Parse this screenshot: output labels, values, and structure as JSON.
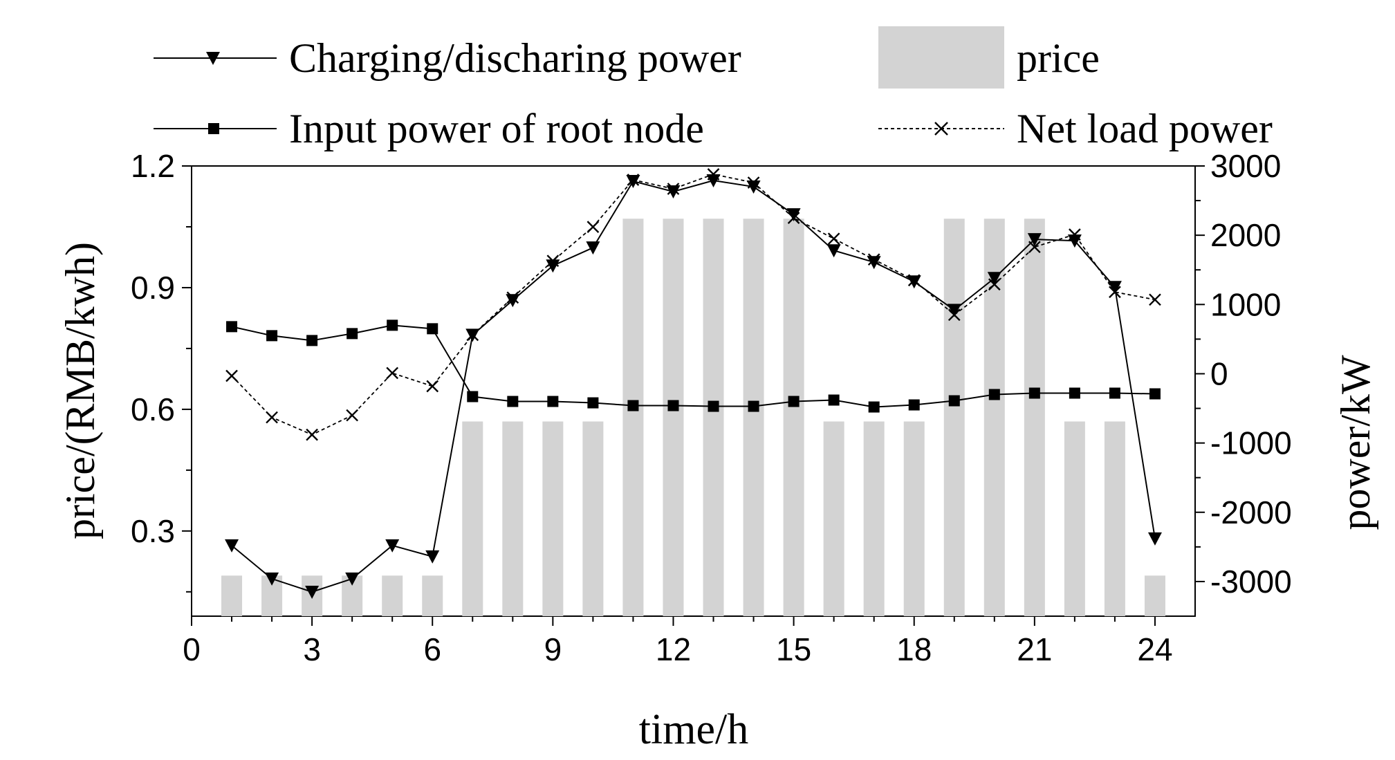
{
  "chart_data": {
    "type": "bar+line",
    "xlabel": "time/h",
    "ylabel_left": "price/(RMB/kwh)",
    "ylabel_right": "power/kW",
    "xlim": [
      0,
      25
    ],
    "ylim_left": [
      0.09,
      1.2
    ],
    "ylim_right": [
      -3500,
      3000
    ],
    "x_ticks": [
      0,
      3,
      6,
      9,
      12,
      15,
      18,
      21,
      24
    ],
    "y_left_ticks": [
      "0.3",
      "0.6",
      "0.9",
      "1.2"
    ],
    "y_right_ticks": [
      "3000",
      "2000",
      "1000",
      "0",
      "-1000",
      "-2000",
      "-3000"
    ],
    "legend": {
      "charging": "Charging/discharing power",
      "price": "price",
      "input": "Input power of root node",
      "netload": "Net load power"
    },
    "hours": [
      1,
      2,
      3,
      4,
      5,
      6,
      7,
      8,
      9,
      10,
      11,
      12,
      13,
      14,
      15,
      16,
      17,
      18,
      19,
      20,
      21,
      22,
      23,
      24
    ],
    "series": [
      {
        "name": "price",
        "kind": "bar",
        "axis": "left",
        "color": "#d3d3d3",
        "values": [
          0.19,
          0.19,
          0.19,
          0.19,
          0.19,
          0.19,
          0.57,
          0.57,
          0.57,
          0.57,
          1.07,
          1.07,
          1.07,
          1.07,
          1.07,
          0.57,
          0.57,
          0.57,
          1.07,
          1.07,
          1.07,
          0.57,
          0.57,
          0.19
        ]
      },
      {
        "name": "Charging/discharing power",
        "kind": "line",
        "marker": "triangle-down",
        "axis": "right",
        "values": [
          -2480,
          -2960,
          -3150,
          -2960,
          -2480,
          -2640,
          560,
          1060,
          1560,
          1820,
          2780,
          2630,
          2790,
          2700,
          2300,
          1780,
          1610,
          1330,
          920,
          1380,
          1940,
          1920,
          1250,
          -2380
        ]
      },
      {
        "name": "Input power of root node",
        "kind": "line",
        "marker": "square",
        "axis": "right",
        "values": [
          680,
          550,
          480,
          580,
          700,
          650,
          -330,
          -400,
          -400,
          -420,
          -460,
          -460,
          -470,
          -470,
          -400,
          -380,
          -480,
          -450,
          -390,
          -300,
          -280,
          -280,
          -280,
          -290
        ]
      },
      {
        "name": "Net load power",
        "kind": "line",
        "marker": "x",
        "axis": "right",
        "dashed": true,
        "values": [
          -30,
          -630,
          -880,
          -600,
          10,
          -180,
          560,
          1100,
          1630,
          2120,
          2800,
          2670,
          2880,
          2760,
          2250,
          1950,
          1650,
          1350,
          850,
          1290,
          1830,
          2010,
          1180,
          1070
        ]
      }
    ]
  }
}
